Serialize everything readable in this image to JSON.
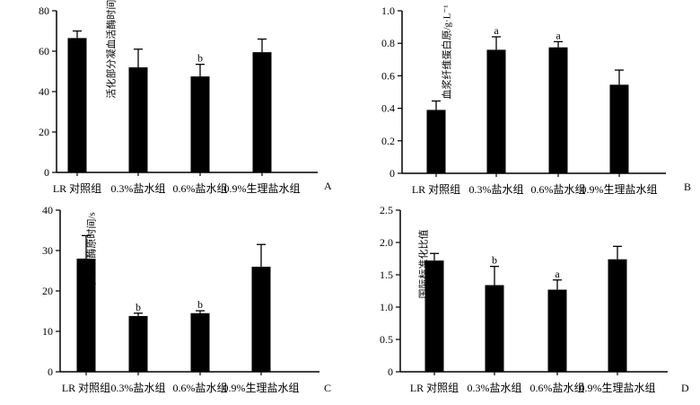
{
  "chart_data": [
    {
      "type": "bar",
      "panel": "A",
      "categories": [
        "LR 对照组",
        "0.3%盐水组",
        "0.6%盐水组",
        "0.9%生理盐水组"
      ],
      "values": [
        66.5,
        52.0,
        47.5,
        59.5
      ],
      "errors": [
        3.5,
        9.0,
        6.0,
        6.5
      ],
      "annotations": [
        "",
        "",
        "b",
        ""
      ],
      "ylabel": "活化部分凝血活酶时间/s",
      "ylim": [
        0,
        80
      ],
      "yticks": [
        0,
        20,
        40,
        60,
        80
      ],
      "bar_color": "#000000"
    },
    {
      "type": "bar",
      "panel": "B",
      "categories": [
        "LR 对照组",
        "0.3%盐水组",
        "0.6%盐水组",
        "0.9%生理盐水组"
      ],
      "values": [
        0.39,
        0.76,
        0.775,
        0.545
      ],
      "errors": [
        0.055,
        0.08,
        0.035,
        0.09
      ],
      "annotations": [
        "",
        "a",
        "a",
        ""
      ],
      "ylabel": "血浆纤维蛋白原/g·L⁻¹",
      "ylim": [
        0,
        1.0
      ],
      "yticks": [
        "0",
        "0.2",
        "0.4",
        "0.6",
        "0.8",
        "1.0"
      ],
      "bar_color": "#000000"
    },
    {
      "type": "bar",
      "panel": "C",
      "categories": [
        "LR 对照组",
        "0.3%盐水组",
        "0.6%盐水组",
        "0.9%生理盐水组"
      ],
      "values": [
        28.0,
        13.8,
        14.5,
        26.0
      ],
      "errors": [
        5.7,
        0.7,
        0.6,
        5.5
      ],
      "annotations": [
        "",
        "b",
        "b",
        ""
      ],
      "ylabel": "血浆凝血酶原时间/s",
      "ylim": [
        0,
        40
      ],
      "yticks": [
        0,
        10,
        20,
        30,
        40
      ],
      "bar_color": "#000000"
    },
    {
      "type": "bar",
      "panel": "D",
      "categories": [
        "LR 对照组",
        "0.3%盐水组",
        "0.6%盐水组",
        "0.9%生理盐水组"
      ],
      "values": [
        1.72,
        1.34,
        1.27,
        1.74
      ],
      "errors": [
        0.11,
        0.29,
        0.15,
        0.2
      ],
      "annotations": [
        "",
        "b",
        "a",
        ""
      ],
      "ylabel": "国际标准化比值",
      "ylim": [
        0,
        2.5
      ],
      "yticks": [
        "0",
        "0.5",
        "1.0",
        "1.5",
        "2.0",
        "2.5"
      ],
      "bar_color": "#000000"
    }
  ]
}
